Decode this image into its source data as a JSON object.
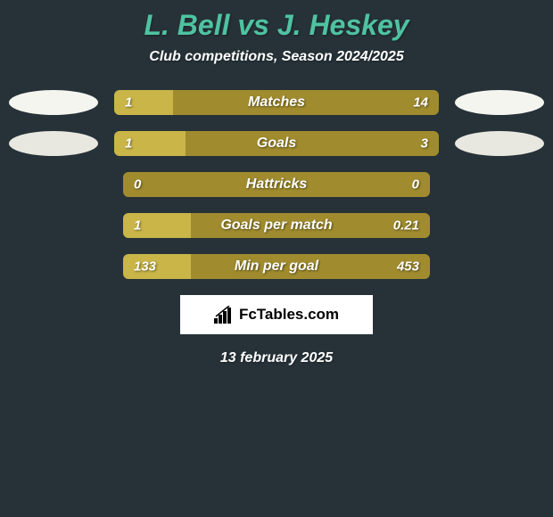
{
  "header": {
    "title": "L. Bell vs J. Heskey",
    "subtitle": "Club competitions, Season 2024/2025"
  },
  "colors": {
    "background": "#263238",
    "title_color": "#4fc3a1",
    "text_color": "#ffffff",
    "bar_base": "#a08c2e",
    "bar_fill": "#c9b548",
    "ellipse_light": "#f5f5f0",
    "ellipse_dark": "#e8e8e0"
  },
  "stats": [
    {
      "label": "Matches",
      "left_value": "1",
      "right_value": "14",
      "fill_percent": 18,
      "has_ellipses": true,
      "ellipse_left_color": "#f5f5f0",
      "ellipse_right_color": "#f5f5f0"
    },
    {
      "label": "Goals",
      "left_value": "1",
      "right_value": "3",
      "fill_percent": 22,
      "has_ellipses": true,
      "ellipse_left_color": "#e8e8e0",
      "ellipse_right_color": "#e8e8e0"
    },
    {
      "label": "Hattricks",
      "left_value": "0",
      "right_value": "0",
      "fill_percent": 0,
      "has_ellipses": false
    },
    {
      "label": "Goals per match",
      "left_value": "1",
      "right_value": "0.21",
      "fill_percent": 22,
      "has_ellipses": false
    },
    {
      "label": "Min per goal",
      "left_value": "133",
      "right_value": "453",
      "fill_percent": 22,
      "has_ellipses": false
    }
  ],
  "logo": {
    "text": "FcTables.com"
  },
  "footer": {
    "date": "13 february 2025"
  }
}
